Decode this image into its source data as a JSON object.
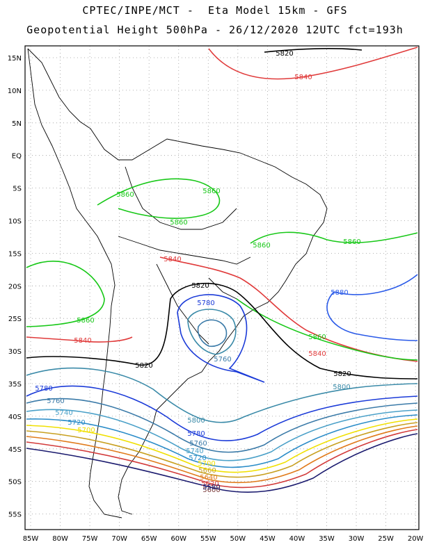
{
  "header": {
    "line1": "CPTEC/INPE/MCT -  Eta Model 15km - GFS",
    "line2": "Geopotential Height 500hPa - 26/12/2020 12UTC fct=193h"
  },
  "axes": {
    "lat_labels": [
      "15N",
      "10N",
      "5N",
      "EQ",
      "5S",
      "10S",
      "15S",
      "20S",
      "25S",
      "30S",
      "35S",
      "40S",
      "45S",
      "50S",
      "55S"
    ],
    "lon_labels": [
      "85W",
      "80W",
      "75W",
      "70W",
      "65W",
      "60W",
      "55W",
      "50W",
      "45W",
      "40W",
      "35W",
      "30W",
      "25W",
      "20W"
    ],
    "grid": "dotted"
  },
  "contour_colors": {
    "5580": "#1a1a6e",
    "5600": "#7a3a3a",
    "5620": "#d23a3a",
    "5640": "#e07a1a",
    "5660": "#c8a020",
    "5680": "#e8d000",
    "5700": "#f0e000",
    "5720": "#2a8cc8",
    "5740": "#4aa0c8",
    "5760": "#3a7aa8",
    "5780": "#1a3ad8",
    "5800": "#3a8aa8",
    "5820": "#000000",
    "5840": "#e03a3a",
    "5860": "#18c818",
    "5880": "#2a5ae8"
  },
  "contour_labels": [
    {
      "text": "5820",
      "color": "5820"
    },
    {
      "text": "5840",
      "color": "5840"
    },
    {
      "text": "5860",
      "color": "5860"
    },
    {
      "text": "5860",
      "color": "5860"
    },
    {
      "text": "5860",
      "color": "5860"
    },
    {
      "text": "5860",
      "color": "5860"
    },
    {
      "text": "5860",
      "color": "5860"
    },
    {
      "text": "5840",
      "color": "5840"
    },
    {
      "text": "5820",
      "color": "5820"
    },
    {
      "text": "5780",
      "color": "5780"
    },
    {
      "text": "5880",
      "color": "5880"
    },
    {
      "text": "5860",
      "color": "5860"
    },
    {
      "text": "5840",
      "color": "5840"
    },
    {
      "text": "5820",
      "color": "5820"
    },
    {
      "text": "5800",
      "color": "5800"
    },
    {
      "text": "5860",
      "color": "5860"
    },
    {
      "text": "5840",
      "color": "5840"
    },
    {
      "text": "5820",
      "color": "5820"
    },
    {
      "text": "5760",
      "color": "5760"
    },
    {
      "text": "5780",
      "color": "5780"
    },
    {
      "text": "5760",
      "color": "5760"
    },
    {
      "text": "5740",
      "color": "5740"
    },
    {
      "text": "5720",
      "color": "5720"
    },
    {
      "text": "5700",
      "color": "5700"
    },
    {
      "text": "5800",
      "color": "5800"
    },
    {
      "text": "5780",
      "color": "5780"
    },
    {
      "text": "5760",
      "color": "5760"
    },
    {
      "text": "5740",
      "color": "5740"
    },
    {
      "text": "5720",
      "color": "5720"
    },
    {
      "text": "5700",
      "color": "5700"
    },
    {
      "text": "5660",
      "color": "5660"
    },
    {
      "text": "5640",
      "color": "5640"
    },
    {
      "text": "5620",
      "color": "5620"
    },
    {
      "text": "5600",
      "color": "5600"
    },
    {
      "text": "5580",
      "color": "5580"
    }
  ]
}
